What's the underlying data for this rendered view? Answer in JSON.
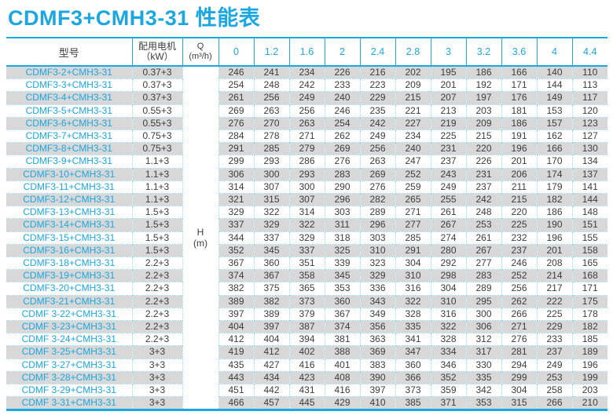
{
  "title": "CDMF3+CMH3-31 性能表",
  "colors": {
    "accent": "#1ba7e1",
    "dotted_border": "#8fd6f1",
    "row_stripe": "#d8d8d8",
    "text_dark": "#3d3d3d"
  },
  "table": {
    "headers": {
      "model": "型号",
      "motor_line1": "配用电机",
      "motor_line2": "（kW）",
      "q_line1": "Q",
      "q_line2": "(m³/h)",
      "flow_values": [
        "0",
        "1.2",
        "1.6",
        "2",
        "2.4",
        "2.8",
        "3",
        "3.2",
        "3.6",
        "4",
        "4.4"
      ]
    },
    "head_unit_line1": "H",
    "head_unit_line2": "(m)",
    "rows": [
      {
        "model": "CDMF3-2+CMH3-31",
        "motor": "0.37+3",
        "values": [
          246,
          241,
          234,
          226,
          216,
          202,
          195,
          186,
          166,
          140,
          110
        ]
      },
      {
        "model": "CDMF3-3+CMH3-31",
        "motor": "0.37+3",
        "values": [
          254,
          248,
          242,
          233,
          223,
          209,
          201,
          192,
          171,
          144,
          113
        ]
      },
      {
        "model": "CDMF3-4+CMH3-31",
        "motor": "0.37+3",
        "values": [
          261,
          256,
          249,
          240,
          229,
          215,
          207,
          197,
          176,
          149,
          117
        ]
      },
      {
        "model": "CDMF3-5+CMH3-31",
        "motor": "0.55+3",
        "values": [
          269,
          263,
          256,
          246,
          235,
          221,
          213,
          203,
          181,
          153,
          120
        ]
      },
      {
        "model": "CDMF3-6+CMH3-31",
        "motor": "0.55+3",
        "values": [
          276,
          270,
          263,
          254,
          242,
          227,
          219,
          209,
          186,
          157,
          123
        ]
      },
      {
        "model": "CDMF3-7+CMH3-31",
        "motor": "0.75+3",
        "values": [
          284,
          278,
          271,
          262,
          249,
          234,
          225,
          215,
          191,
          162,
          127
        ]
      },
      {
        "model": "CDMF3-8+CMH3-31",
        "motor": "0.75+3",
        "values": [
          291,
          285,
          279,
          269,
          256,
          240,
          231,
          220,
          196,
          166,
          130
        ]
      },
      {
        "model": "CDMF3-9+CMH3-31",
        "motor": "1.1+3",
        "values": [
          299,
          293,
          286,
          276,
          263,
          247,
          237,
          226,
          201,
          170,
          134
        ]
      },
      {
        "model": "CDMF3-10+CMH3-31",
        "motor": "1.1+3",
        "values": [
          306,
          300,
          293,
          283,
          269,
          252,
          243,
          231,
          206,
          174,
          137
        ]
      },
      {
        "model": "CDMF3-11+CMH3-31",
        "motor": "1.1+3",
        "values": [
          314,
          307,
          300,
          290,
          276,
          259,
          249,
          237,
          211,
          179,
          141
        ]
      },
      {
        "model": "CDMF3-12+CMH3-31",
        "motor": "1.1+3",
        "values": [
          321,
          315,
          307,
          296,
          282,
          265,
          255,
          242,
          215,
          182,
          144
        ]
      },
      {
        "model": "CDMF3-13+CMH3-31",
        "motor": "1.5+3",
        "values": [
          329,
          322,
          314,
          303,
          289,
          271,
          261,
          248,
          220,
          186,
          148
        ]
      },
      {
        "model": "CDMF3-14+CMH3-31",
        "motor": "1.5+3",
        "values": [
          337,
          329,
          322,
          311,
          296,
          277,
          267,
          253,
          225,
          190,
          151
        ]
      },
      {
        "model": "CDMF3-15+CMH3-31",
        "motor": "1.5+3",
        "values": [
          344,
          337,
          329,
          318,
          303,
          285,
          274,
          261,
          232,
          196,
          155
        ]
      },
      {
        "model": "CDMF3-16+CMH3-31",
        "motor": "1.5+3",
        "values": [
          352,
          345,
          337,
          325,
          310,
          291,
          280,
          267,
          237,
          201,
          158
        ]
      },
      {
        "model": "CDMF3-18+CMH3-31",
        "motor": "2.2+3",
        "values": [
          367,
          360,
          351,
          339,
          323,
          304,
          292,
          277,
          246,
          208,
          165
        ]
      },
      {
        "model": "CDMF3-19+CMH3-31",
        "motor": "2.2+3",
        "values": [
          374,
          367,
          358,
          345,
          329,
          310,
          298,
          283,
          252,
          214,
          168
        ]
      },
      {
        "model": "CDMF3-20+CMH3-31",
        "motor": "2.2+3",
        "values": [
          382,
          375,
          365,
          353,
          336,
          316,
          304,
          289,
          256,
          217,
          171
        ]
      },
      {
        "model": "CDMF3-21+CMH3-31",
        "motor": "2.2+3",
        "values": [
          389,
          382,
          373,
          360,
          343,
          322,
          310,
          295,
          262,
          222,
          175
        ]
      },
      {
        "model": "CDMF 3-22+CMH3-31",
        "motor": "2.2+3",
        "values": [
          397,
          389,
          379,
          367,
          349,
          328,
          316,
          300,
          266,
          225,
          178
        ]
      },
      {
        "model": "CDMF 3-23+CMH3-31",
        "motor": "2.2+3",
        "values": [
          404,
          397,
          387,
          374,
          356,
          335,
          322,
          306,
          271,
          229,
          182
        ]
      },
      {
        "model": "CDMF 3-24+CMH3-31",
        "motor": "2.2+3",
        "values": [
          412,
          404,
          394,
          381,
          363,
          341,
          328,
          312,
          276,
          233,
          185
        ]
      },
      {
        "model": "CDMF 3-25+CMH3-31",
        "motor": "3+3",
        "values": [
          419,
          412,
          402,
          388,
          369,
          347,
          334,
          317,
          281,
          237,
          189
        ]
      },
      {
        "model": "CDMF 3-27+CMH3-31",
        "motor": "3+3",
        "values": [
          435,
          427,
          416,
          401,
          383,
          360,
          346,
          330,
          294,
          249,
          196
        ]
      },
      {
        "model": "CDMF 3-28+CMH3-31",
        "motor": "3+3",
        "values": [
          443,
          434,
          423,
          408,
          390,
          366,
          352,
          335,
          299,
          253,
          199
        ]
      },
      {
        "model": "CDMF 3-29+CMH3-31",
        "motor": "3+3",
        "values": [
          451,
          442,
          431,
          416,
          397,
          373,
          359,
          342,
          304,
          258,
          203
        ]
      },
      {
        "model": "CDMF 3-31+CMH3-31",
        "motor": "3+3",
        "values": [
          466,
          457,
          445,
          429,
          410,
          385,
          371,
          353,
          315,
          266,
          210
        ]
      }
    ]
  }
}
